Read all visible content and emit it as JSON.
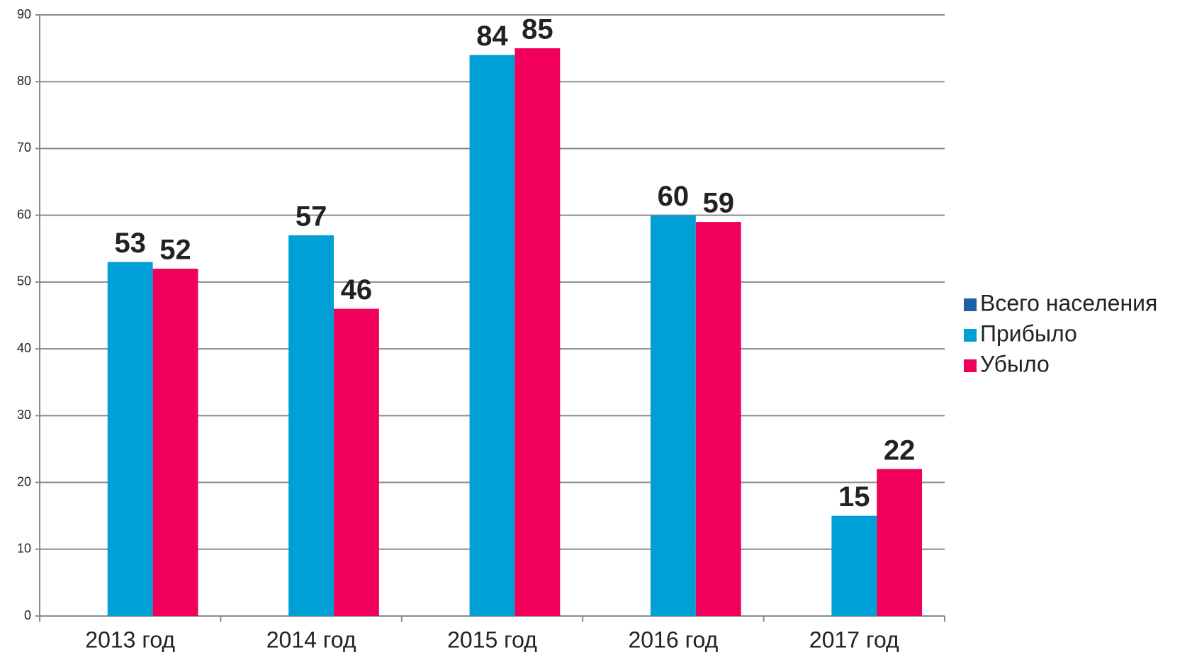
{
  "chart_data": {
    "type": "bar",
    "categories": [
      "2013 год",
      "2014 год",
      "2015 год",
      "2016 год",
      "2017 год"
    ],
    "series": [
      {
        "name": "Всего населения",
        "color": "#1f5fa8",
        "values": [
          null,
          null,
          null,
          null,
          null
        ]
      },
      {
        "name": "Прибыло",
        "color": "#009fd6",
        "values": [
          53,
          57,
          84,
          60,
          15
        ]
      },
      {
        "name": "Убыло",
        "color": "#f0005a",
        "values": [
          52,
          46,
          85,
          59,
          22
        ]
      }
    ],
    "ylim": [
      0,
      90
    ],
    "yticks": [
      0,
      10,
      20,
      30,
      40,
      50,
      60,
      70,
      80,
      90
    ],
    "grid": true,
    "legend": "right"
  }
}
